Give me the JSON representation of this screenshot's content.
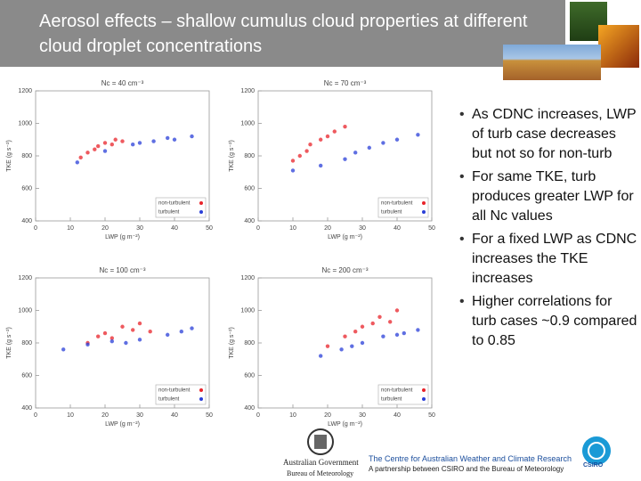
{
  "header": {
    "title": "Aerosol effects – shallow cumulus cloud properties at different cloud droplet concentrations"
  },
  "chart_data": [
    {
      "type": "scatter",
      "title": "Nc = 40 cm⁻³",
      "x_label": "LWP (g m⁻²)",
      "y_label": "TKE (g s⁻²)",
      "xlim": [
        0,
        50
      ],
      "xticks": [
        0,
        10,
        20,
        30,
        40,
        50
      ],
      "ylim": [
        400,
        1200
      ],
      "yticks": [
        400,
        600,
        800,
        1000,
        1200
      ],
      "legend": "lower right",
      "series": [
        {
          "name": "non-turbulent",
          "color": "#e8232a",
          "x": [
            13,
            15,
            18,
            20,
            23,
            17,
            22,
            25
          ],
          "y": [
            790,
            820,
            860,
            880,
            900,
            840,
            870,
            890
          ]
        },
        {
          "name": "turbulent",
          "color": "#2a3fd8",
          "x": [
            12,
            20,
            28,
            34,
            40,
            45,
            30,
            38
          ],
          "y": [
            760,
            830,
            870,
            890,
            900,
            920,
            880,
            910
          ]
        }
      ]
    },
    {
      "type": "scatter",
      "title": "Nc = 70 cm⁻³",
      "x_label": "LWP (g m⁻²)",
      "y_label": "TKE (g s⁻²)",
      "xlim": [
        0,
        50
      ],
      "xticks": [
        0,
        10,
        20,
        30,
        40,
        50
      ],
      "ylim": [
        400,
        1200
      ],
      "yticks": [
        400,
        600,
        800,
        1000,
        1200
      ],
      "legend": "lower right",
      "series": [
        {
          "name": "non-turbulent",
          "color": "#e8232a",
          "x": [
            10,
            14,
            18,
            22,
            25,
            15,
            20,
            12
          ],
          "y": [
            770,
            830,
            900,
            950,
            980,
            870,
            920,
            800
          ]
        },
        {
          "name": "turbulent",
          "color": "#2a3fd8",
          "x": [
            10,
            18,
            25,
            32,
            40,
            46,
            28,
            36
          ],
          "y": [
            710,
            740,
            780,
            850,
            900,
            930,
            820,
            880
          ]
        }
      ]
    },
    {
      "type": "scatter",
      "title": "Nc = 100 cm⁻³",
      "x_label": "LWP (g m⁻²)",
      "y_label": "TKE (g s⁻²)",
      "xlim": [
        0,
        50
      ],
      "xticks": [
        0,
        10,
        20,
        30,
        40,
        50
      ],
      "ylim": [
        400,
        1200
      ],
      "yticks": [
        400,
        600,
        800,
        1000,
        1200
      ],
      "legend": "lower right",
      "series": [
        {
          "name": "non-turbulent",
          "color": "#e8232a",
          "x": [
            15,
            20,
            25,
            30,
            18,
            28,
            22,
            33
          ],
          "y": [
            800,
            860,
            900,
            920,
            840,
            880,
            830,
            870
          ]
        },
        {
          "name": "turbulent",
          "color": "#2a3fd8",
          "x": [
            8,
            15,
            22,
            30,
            38,
            45,
            26,
            42
          ],
          "y": [
            760,
            790,
            810,
            820,
            850,
            890,
            800,
            870
          ]
        }
      ]
    },
    {
      "type": "scatter",
      "title": "Nc = 200 cm⁻³",
      "x_label": "LWP (g m⁻²)",
      "y_label": "TKE (g s⁻²)",
      "xlim": [
        0,
        50
      ],
      "xticks": [
        0,
        10,
        20,
        30,
        40,
        50
      ],
      "ylim": [
        400,
        1200
      ],
      "yticks": [
        400,
        600,
        800,
        1000,
        1200
      ],
      "legend": "lower right",
      "series": [
        {
          "name": "non-turbulent",
          "color": "#e8232a",
          "x": [
            20,
            25,
            30,
            35,
            40,
            28,
            38,
            33
          ],
          "y": [
            780,
            840,
            900,
            960,
            1000,
            870,
            930,
            920
          ]
        },
        {
          "name": "turbulent",
          "color": "#2a3fd8",
          "x": [
            18,
            24,
            30,
            36,
            42,
            46,
            27,
            40
          ],
          "y": [
            720,
            760,
            800,
            840,
            860,
            880,
            780,
            850
          ]
        }
      ]
    }
  ],
  "bullets": [
    "As CDNC increases, LWP of turb case decreases but not so for non-turb",
    "For same TKE, turb produces greater LWP for all Nc values",
    "For a fixed LWP as CDNC increases the TKE increases",
    "Higher correlations for turb cases ~0.9 compared to 0.85"
  ],
  "footer": {
    "gov": "Australian Government",
    "bureau": "Bureau of Meteorology",
    "centre": "The Centre for Australian Weather and Climate Research",
    "partnership": "A partnership between CSIRO and the Bureau of Meteorology",
    "csiro": "CSIRO"
  }
}
